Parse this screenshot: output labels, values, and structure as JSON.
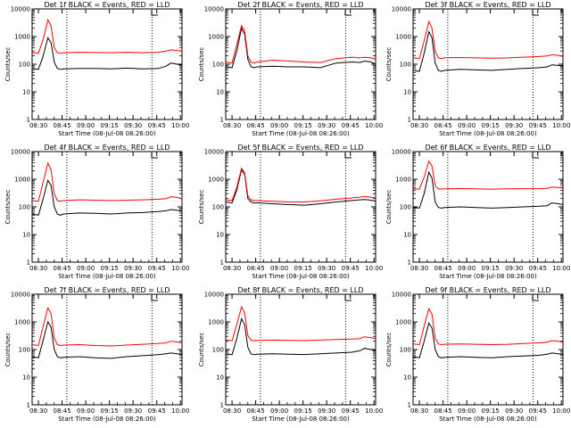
{
  "chart_data": [
    {
      "type": "line",
      "title": "Det 1f BLACK = Events, RED = LLD",
      "xlabel": "Start Time (08-Jul-08 08:26:00)",
      "ylabel": "Counts/sec",
      "yscale": "log",
      "ylim": [
        1,
        10000
      ],
      "xlim": [
        0,
        95
      ],
      "xticks": [
        "08:30",
        "08:45",
        "09:00",
        "09:15",
        "09:30",
        "09:45",
        "10:00"
      ],
      "yticks": [
        "1",
        "10",
        "100",
        "1000",
        "10000"
      ],
      "vlines_at": [
        "08:45",
        "09:45"
      ],
      "series": [
        {
          "color": "#000000",
          "x": [
            0,
            4,
            7,
            10,
            12,
            14,
            16,
            18,
            20,
            30,
            40,
            50,
            60,
            70,
            80,
            85,
            88,
            92,
            95
          ],
          "y": [
            70,
            65,
            200,
            900,
            600,
            120,
            70,
            65,
            68,
            70,
            70,
            68,
            72,
            68,
            70,
            85,
            110,
            100,
            90
          ]
        },
        {
          "color": "#ff0000",
          "x": [
            0,
            4,
            7,
            10,
            12,
            14,
            16,
            18,
            20,
            30,
            40,
            50,
            60,
            70,
            80,
            85,
            88,
            92,
            95
          ],
          "y": [
            260,
            250,
            800,
            4000,
            2500,
            400,
            260,
            250,
            260,
            270,
            265,
            260,
            270,
            260,
            270,
            300,
            330,
            310,
            300
          ]
        }
      ]
    },
    {
      "type": "line",
      "title": "Det 2f BLACK = Events, RED = LLD",
      "xlabel": "Start Time (08-Jul-08 08:26:00)",
      "ylabel": "Counts/sec",
      "yscale": "log",
      "ylim": [
        1,
        10000
      ],
      "xlim": [
        0,
        95
      ],
      "xticks": [
        "08:30",
        "08:45",
        "09:00",
        "09:15",
        "09:30",
        "09:45",
        "10:00"
      ],
      "yticks": [
        "1",
        "10",
        "100",
        "1000",
        "10000"
      ],
      "vlines_at": [
        "08:45",
        "09:45"
      ],
      "series": [
        {
          "color": "#000000",
          "x": [
            0,
            4,
            7,
            10,
            12,
            14,
            16,
            18,
            20,
            30,
            40,
            50,
            60,
            70,
            80,
            85,
            88,
            92,
            95
          ],
          "y": [
            80,
            75,
            300,
            2000,
            1200,
            150,
            80,
            75,
            80,
            85,
            80,
            80,
            75,
            110,
            120,
            115,
            130,
            120,
            100
          ]
        },
        {
          "color": "#ff0000",
          "x": [
            0,
            4,
            7,
            10,
            12,
            14,
            16,
            18,
            20,
            30,
            40,
            50,
            60,
            70,
            80,
            85,
            88,
            92,
            95
          ],
          "y": [
            120,
            110,
            500,
            2500,
            1600,
            200,
            120,
            110,
            120,
            140,
            130,
            120,
            115,
            160,
            180,
            170,
            180,
            170,
            150
          ]
        }
      ]
    },
    {
      "type": "line",
      "title": "Det 3f BLACK = Events, RED = LLD",
      "xlabel": "Start Time (08-Jul-08 08:26:00)",
      "ylabel": "Counts/sec",
      "yscale": "log",
      "ylim": [
        1,
        10000
      ],
      "xlim": [
        0,
        95
      ],
      "xticks": [
        "08:30",
        "08:45",
        "09:00",
        "09:15",
        "09:30",
        "09:45",
        "10:00"
      ],
      "yticks": [
        "1",
        "10",
        "100",
        "1000",
        "10000"
      ],
      "vlines_at": [
        "08:45",
        "09:45"
      ],
      "series": [
        {
          "color": "#000000",
          "x": [
            0,
            4,
            7,
            10,
            12,
            14,
            16,
            18,
            20,
            30,
            40,
            50,
            60,
            70,
            80,
            85,
            88,
            92,
            95
          ],
          "y": [
            60,
            55,
            250,
            1500,
            900,
            110,
            60,
            55,
            60,
            65,
            62,
            60,
            65,
            70,
            75,
            80,
            95,
            90,
            85
          ]
        },
        {
          "color": "#ff0000",
          "x": [
            0,
            4,
            7,
            10,
            12,
            14,
            16,
            18,
            20,
            30,
            40,
            50,
            60,
            70,
            80,
            85,
            88,
            92,
            95
          ],
          "y": [
            170,
            160,
            700,
            3500,
            2000,
            300,
            170,
            160,
            170,
            175,
            170,
            165,
            170,
            180,
            190,
            200,
            220,
            210,
            190
          ]
        }
      ]
    },
    {
      "type": "line",
      "title": "Det 4f BLACK = Events, RED = LLD",
      "xlabel": "Start Time (08-Jul-08 08:26:00)",
      "ylabel": "Counts/sec",
      "yscale": "log",
      "ylim": [
        1,
        10000
      ],
      "xlim": [
        0,
        95
      ],
      "xticks": [
        "08:30",
        "08:45",
        "09:00",
        "09:15",
        "09:30",
        "09:45",
        "10:00"
      ],
      "yticks": [
        "1",
        "10",
        "100",
        "1000",
        "10000"
      ],
      "vlines_at": [
        "08:45",
        "09:45"
      ],
      "series": [
        {
          "color": "#000000",
          "x": [
            0,
            4,
            7,
            10,
            12,
            14,
            16,
            18,
            20,
            30,
            40,
            50,
            60,
            70,
            80,
            85,
            88,
            92,
            95
          ],
          "y": [
            55,
            50,
            200,
            900,
            600,
            100,
            55,
            50,
            55,
            60,
            58,
            55,
            60,
            62,
            68,
            72,
            80,
            75,
            70
          ]
        },
        {
          "color": "#ff0000",
          "x": [
            0,
            4,
            7,
            10,
            12,
            14,
            16,
            18,
            20,
            30,
            40,
            50,
            60,
            70,
            80,
            85,
            88,
            92,
            95
          ],
          "y": [
            170,
            160,
            800,
            3800,
            2200,
            300,
            170,
            160,
            170,
            180,
            175,
            170,
            175,
            180,
            190,
            200,
            230,
            220,
            200
          ]
        }
      ]
    },
    {
      "type": "line",
      "title": "Det 5f BLACK = Events, RED = LLD",
      "xlabel": "Start Time (08-Jul-08 08:26:00)",
      "ylabel": "Counts/sec",
      "yscale": "log",
      "ylim": [
        1,
        10000
      ],
      "xlim": [
        0,
        95
      ],
      "xticks": [
        "08:30",
        "08:45",
        "09:00",
        "09:15",
        "09:30",
        "09:45",
        "10:00"
      ],
      "yticks": [
        "1",
        "10",
        "100",
        "1000",
        "10000"
      ],
      "vlines_at": [
        "08:45",
        "09:45"
      ],
      "series": [
        {
          "color": "#000000",
          "x": [
            0,
            4,
            7,
            10,
            12,
            14,
            16,
            18,
            20,
            30,
            40,
            50,
            60,
            70,
            80,
            85,
            88,
            92,
            95
          ],
          "y": [
            150,
            140,
            400,
            2200,
            1500,
            200,
            150,
            140,
            140,
            130,
            120,
            115,
            130,
            150,
            170,
            180,
            185,
            175,
            160
          ]
        },
        {
          "color": "#ff0000",
          "x": [
            0,
            4,
            7,
            10,
            12,
            14,
            16,
            18,
            20,
            30,
            40,
            50,
            60,
            70,
            80,
            85,
            88,
            92,
            95
          ],
          "y": [
            180,
            170,
            500,
            2500,
            1700,
            250,
            180,
            170,
            170,
            160,
            150,
            150,
            165,
            190,
            210,
            225,
            235,
            225,
            210
          ]
        }
      ]
    },
    {
      "type": "line",
      "title": "Det 6f BLACK = Events, RED = LLD",
      "xlabel": "Start Time (08-Jul-08 08:26:00)",
      "ylabel": "Counts/sec",
      "yscale": "log",
      "ylim": [
        1,
        10000
      ],
      "xlim": [
        0,
        95
      ],
      "xticks": [
        "08:30",
        "08:45",
        "09:00",
        "09:15",
        "09:30",
        "09:45",
        "10:00"
      ],
      "yticks": [
        "1",
        "10",
        "100",
        "1000",
        "10000"
      ],
      "vlines_at": [
        "08:45",
        "09:45"
      ],
      "series": [
        {
          "color": "#000000",
          "x": [
            0,
            4,
            7,
            10,
            12,
            14,
            16,
            18,
            20,
            30,
            40,
            50,
            60,
            70,
            80,
            85,
            88,
            92,
            95
          ],
          "y": [
            95,
            90,
            300,
            1800,
            1100,
            150,
            95,
            90,
            95,
            100,
            95,
            90,
            95,
            100,
            105,
            110,
            140,
            130,
            120
          ]
        },
        {
          "color": "#ff0000",
          "x": [
            0,
            4,
            7,
            10,
            12,
            14,
            16,
            18,
            20,
            30,
            40,
            50,
            60,
            70,
            80,
            85,
            88,
            92,
            95
          ],
          "y": [
            450,
            440,
            1200,
            4500,
            3000,
            600,
            450,
            440,
            450,
            460,
            450,
            440,
            450,
            455,
            460,
            470,
            520,
            500,
            480
          ]
        }
      ]
    },
    {
      "type": "line",
      "title": "Det 7f BLACK = Events, RED = LLD",
      "xlabel": "Start Time (08-Jul-08 08:26:00)",
      "ylabel": "Counts/sec",
      "yscale": "log",
      "ylim": [
        1,
        10000
      ],
      "xlim": [
        0,
        95
      ],
      "xticks": [
        "08:30",
        "08:45",
        "09:00",
        "09:15",
        "09:30",
        "09:45",
        "10:00"
      ],
      "yticks": [
        "1",
        "10",
        "100",
        "1000",
        "10000"
      ],
      "vlines_at": [
        "08:45",
        "09:45"
      ],
      "series": [
        {
          "color": "#000000",
          "x": [
            0,
            4,
            7,
            10,
            12,
            14,
            16,
            18,
            20,
            30,
            40,
            50,
            60,
            70,
            80,
            85,
            88,
            92,
            95
          ],
          "y": [
            55,
            50,
            220,
            1000,
            650,
            100,
            55,
            50,
            52,
            55,
            50,
            48,
            55,
            60,
            65,
            70,
            75,
            70,
            65
          ]
        },
        {
          "color": "#ff0000",
          "x": [
            0,
            4,
            7,
            10,
            12,
            14,
            16,
            18,
            20,
            30,
            40,
            50,
            60,
            70,
            80,
            85,
            88,
            92,
            95
          ],
          "y": [
            150,
            140,
            700,
            3200,
            2000,
            260,
            150,
            140,
            145,
            150,
            140,
            135,
            145,
            155,
            165,
            175,
            200,
            190,
            170
          ]
        }
      ]
    },
    {
      "type": "line",
      "title": "Det 8f BLACK = Events, RED = LLD",
      "xlabel": "Start Time (08-Jul-08 08:26:00)",
      "ylabel": "Counts/sec",
      "yscale": "log",
      "ylim": [
        1,
        10000
      ],
      "xlim": [
        0,
        95
      ],
      "xticks": [
        "08:30",
        "08:45",
        "09:00",
        "09:15",
        "09:30",
        "09:45",
        "10:00"
      ],
      "yticks": [
        "1",
        "10",
        "100",
        "1000",
        "10000"
      ],
      "vlines_at": [
        "08:45",
        "09:45"
      ],
      "series": [
        {
          "color": "#000000",
          "x": [
            0,
            4,
            7,
            10,
            12,
            14,
            16,
            18,
            20,
            30,
            40,
            50,
            60,
            70,
            80,
            85,
            88,
            92,
            95
          ],
          "y": [
            70,
            65,
            250,
            1300,
            800,
            120,
            70,
            65,
            68,
            70,
            68,
            66,
            70,
            75,
            80,
            90,
            110,
            100,
            90
          ]
        },
        {
          "color": "#ff0000",
          "x": [
            0,
            4,
            7,
            10,
            12,
            14,
            16,
            18,
            20,
            30,
            40,
            50,
            60,
            70,
            80,
            85,
            88,
            92,
            95
          ],
          "y": [
            220,
            210,
            800,
            3500,
            2200,
            320,
            220,
            210,
            215,
            220,
            215,
            210,
            220,
            230,
            240,
            250,
            290,
            270,
            250
          ]
        }
      ]
    },
    {
      "type": "line",
      "title": "Det 9f BLACK = Events, RED = LLD",
      "xlabel": "Start Time (08-Jul-08 08:26:00)",
      "ylabel": "Counts/sec",
      "yscale": "log",
      "ylim": [
        1,
        10000
      ],
      "xlim": [
        0,
        95
      ],
      "xticks": [
        "08:30",
        "08:45",
        "09:00",
        "09:15",
        "09:30",
        "09:45",
        "10:00"
      ],
      "yticks": [
        "1",
        "10",
        "100",
        "1000",
        "10000"
      ],
      "vlines_at": [
        "08:45",
        "09:45"
      ],
      "series": [
        {
          "color": "#000000",
          "x": [
            0,
            4,
            7,
            10,
            12,
            14,
            16,
            18,
            20,
            30,
            40,
            50,
            60,
            70,
            80,
            85,
            88,
            92,
            95
          ],
          "y": [
            55,
            50,
            200,
            900,
            600,
            100,
            55,
            50,
            52,
            55,
            52,
            50,
            55,
            58,
            62,
            68,
            75,
            70,
            65
          ]
        },
        {
          "color": "#ff0000",
          "x": [
            0,
            4,
            7,
            10,
            12,
            14,
            16,
            18,
            20,
            30,
            40,
            50,
            60,
            70,
            80,
            85,
            88,
            92,
            95
          ],
          "y": [
            160,
            150,
            700,
            3000,
            1900,
            260,
            160,
            150,
            155,
            160,
            155,
            150,
            155,
            165,
            175,
            185,
            210,
            200,
            180
          ]
        }
      ]
    }
  ]
}
